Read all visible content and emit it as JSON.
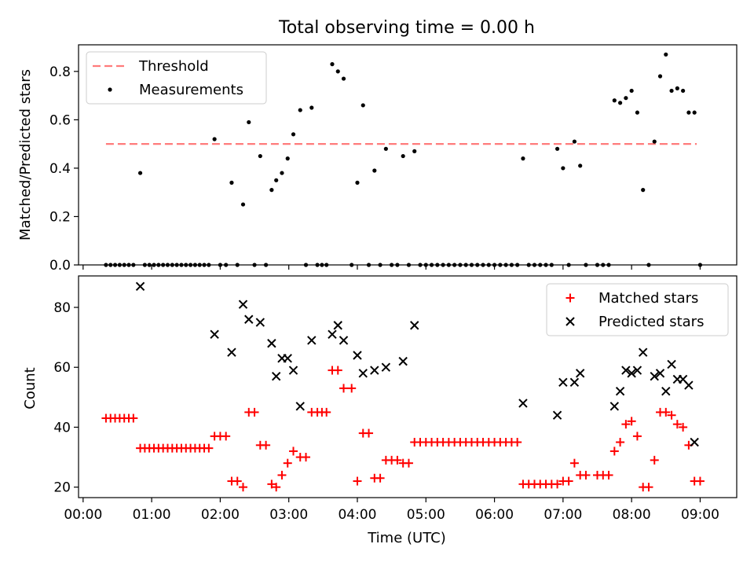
{
  "title": "Total observing time = 0.00 h",
  "chart_data": [
    {
      "type": "scatter",
      "ylabel": "Matched/Predicted stars",
      "ylim": [
        0,
        0.91
      ],
      "yticks": [
        "0.0",
        "0.2",
        "0.4",
        "0.6",
        "0.8"
      ],
      "legend_position": "top-left",
      "threshold": {
        "name": "Threshold",
        "value": 0.5,
        "x_start": "00:20",
        "x_end": "08:57",
        "color": "#ff7b7b"
      },
      "series": [
        {
          "name": "Measurements",
          "color": "#000000",
          "points": [
            [
              "00:20",
              0
            ],
            [
              "00:24",
              0
            ],
            [
              "00:28",
              0
            ],
            [
              "00:32",
              0
            ],
            [
              "00:36",
              0
            ],
            [
              "00:40",
              0
            ],
            [
              "00:44",
              0
            ],
            [
              "00:50",
              0.38
            ],
            [
              "00:54",
              0
            ],
            [
              "00:58",
              0
            ],
            [
              "01:02",
              0
            ],
            [
              "01:06",
              0
            ],
            [
              "01:10",
              0
            ],
            [
              "01:14",
              0
            ],
            [
              "01:18",
              0
            ],
            [
              "01:22",
              0
            ],
            [
              "01:26",
              0
            ],
            [
              "01:30",
              0
            ],
            [
              "01:34",
              0
            ],
            [
              "01:38",
              0
            ],
            [
              "01:42",
              0
            ],
            [
              "01:46",
              0
            ],
            [
              "01:50",
              0
            ],
            [
              "01:55",
              0.52
            ],
            [
              "02:00",
              0
            ],
            [
              "02:05",
              0
            ],
            [
              "02:10",
              0.34
            ],
            [
              "02:15",
              0
            ],
            [
              "02:20",
              0.25
            ],
            [
              "02:25",
              0.59
            ],
            [
              "02:30",
              0
            ],
            [
              "02:35",
              0.45
            ],
            [
              "02:40",
              0
            ],
            [
              "02:45",
              0.31
            ],
            [
              "02:49",
              0.35
            ],
            [
              "02:54",
              0.38
            ],
            [
              "02:59",
              0.44
            ],
            [
              "03:04",
              0.54
            ],
            [
              "03:10",
              0.64
            ],
            [
              "03:15",
              0
            ],
            [
              "03:20",
              0.65
            ],
            [
              "03:25",
              0
            ],
            [
              "03:29",
              0
            ],
            [
              "03:33",
              0
            ],
            [
              "03:38",
              0.83
            ],
            [
              "03:43",
              0.8
            ],
            [
              "03:48",
              0.77
            ],
            [
              "03:55",
              0
            ],
            [
              "04:00",
              0.34
            ],
            [
              "04:05",
              0.66
            ],
            [
              "04:10",
              0
            ],
            [
              "04:15",
              0.39
            ],
            [
              "04:20",
              0
            ],
            [
              "04:25",
              0.48
            ],
            [
              "04:30",
              0
            ],
            [
              "04:35",
              0
            ],
            [
              "04:40",
              0.45
            ],
            [
              "04:45",
              0
            ],
            [
              "04:50",
              0.47
            ],
            [
              "04:55",
              0
            ],
            [
              "05:00",
              0
            ],
            [
              "05:05",
              0
            ],
            [
              "05:10",
              0
            ],
            [
              "05:15",
              0
            ],
            [
              "05:20",
              0
            ],
            [
              "05:25",
              0
            ],
            [
              "05:30",
              0
            ],
            [
              "05:35",
              0
            ],
            [
              "05:40",
              0
            ],
            [
              "05:45",
              0
            ],
            [
              "05:50",
              0
            ],
            [
              "05:55",
              0
            ],
            [
              "06:00",
              0
            ],
            [
              "06:05",
              0
            ],
            [
              "06:10",
              0
            ],
            [
              "06:15",
              0
            ],
            [
              "06:20",
              0
            ],
            [
              "06:25",
              0.44
            ],
            [
              "06:30",
              0
            ],
            [
              "06:35",
              0
            ],
            [
              "06:40",
              0
            ],
            [
              "06:45",
              0
            ],
            [
              "06:50",
              0
            ],
            [
              "06:55",
              0.48
            ],
            [
              "07:00",
              0.4
            ],
            [
              "07:05",
              0
            ],
            [
              "07:10",
              0.51
            ],
            [
              "07:15",
              0.41
            ],
            [
              "07:20",
              0
            ],
            [
              "07:30",
              0
            ],
            [
              "07:35",
              0
            ],
            [
              "07:40",
              0
            ],
            [
              "07:45",
              0.68
            ],
            [
              "07:50",
              0.67
            ],
            [
              "07:55",
              0.69
            ],
            [
              "08:00",
              0.72
            ],
            [
              "08:05",
              0.63
            ],
            [
              "08:10",
              0.31
            ],
            [
              "08:15",
              0
            ],
            [
              "08:20",
              0.51
            ],
            [
              "08:25",
              0.78
            ],
            [
              "08:30",
              0.87
            ],
            [
              "08:35",
              0.72
            ],
            [
              "08:40",
              0.73
            ],
            [
              "08:45",
              0.72
            ],
            [
              "08:50",
              0.63
            ],
            [
              "08:55",
              0.63
            ],
            [
              "09:00",
              0
            ]
          ]
        }
      ]
    },
    {
      "type": "scatter",
      "xlabel": "Time (UTC)",
      "ylabel": "Count",
      "ylim": [
        16.5,
        90.5
      ],
      "yticks": [
        "20",
        "40",
        "60",
        "80"
      ],
      "xlim": [
        "23:56",
        "09:32"
      ],
      "xticks": [
        "00:00",
        "01:00",
        "02:00",
        "03:00",
        "04:00",
        "05:00",
        "06:00",
        "07:00",
        "08:00",
        "09:00"
      ],
      "legend_position": "top-right",
      "series": [
        {
          "name": "Matched stars",
          "marker": "+",
          "color": "#ff0000",
          "points": [
            [
              "00:20",
              43
            ],
            [
              "00:24",
              43
            ],
            [
              "00:28",
              43
            ],
            [
              "00:32",
              43
            ],
            [
              "00:36",
              43
            ],
            [
              "00:40",
              43
            ],
            [
              "00:44",
              43
            ],
            [
              "00:50",
              33
            ],
            [
              "00:54",
              33
            ],
            [
              "00:58",
              33
            ],
            [
              "01:02",
              33
            ],
            [
              "01:06",
              33
            ],
            [
              "01:10",
              33
            ],
            [
              "01:14",
              33
            ],
            [
              "01:18",
              33
            ],
            [
              "01:22",
              33
            ],
            [
              "01:26",
              33
            ],
            [
              "01:30",
              33
            ],
            [
              "01:34",
              33
            ],
            [
              "01:38",
              33
            ],
            [
              "01:42",
              33
            ],
            [
              "01:46",
              33
            ],
            [
              "01:50",
              33
            ],
            [
              "01:55",
              37
            ],
            [
              "02:00",
              37
            ],
            [
              "02:05",
              37
            ],
            [
              "02:10",
              22
            ],
            [
              "02:15",
              22
            ],
            [
              "02:20",
              20
            ],
            [
              "02:25",
              45
            ],
            [
              "02:30",
              45
            ],
            [
              "02:35",
              34
            ],
            [
              "02:40",
              34
            ],
            [
              "02:45",
              21
            ],
            [
              "02:49",
              20
            ],
            [
              "02:54",
              24
            ],
            [
              "02:59",
              28
            ],
            [
              "03:04",
              32
            ],
            [
              "03:10",
              30
            ],
            [
              "03:15",
              30
            ],
            [
              "03:20",
              45
            ],
            [
              "03:25",
              45
            ],
            [
              "03:29",
              45
            ],
            [
              "03:33",
              45
            ],
            [
              "03:38",
              59
            ],
            [
              "03:43",
              59
            ],
            [
              "03:48",
              53
            ],
            [
              "03:55",
              53
            ],
            [
              "04:00",
              22
            ],
            [
              "04:05",
              38
            ],
            [
              "04:10",
              38
            ],
            [
              "04:15",
              23
            ],
            [
              "04:20",
              23
            ],
            [
              "04:25",
              29
            ],
            [
              "04:30",
              29
            ],
            [
              "04:35",
              29
            ],
            [
              "04:40",
              28
            ],
            [
              "04:45",
              28
            ],
            [
              "04:50",
              35
            ],
            [
              "04:55",
              35
            ],
            [
              "05:00",
              35
            ],
            [
              "05:05",
              35
            ],
            [
              "05:10",
              35
            ],
            [
              "05:15",
              35
            ],
            [
              "05:20",
              35
            ],
            [
              "05:25",
              35
            ],
            [
              "05:30",
              35
            ],
            [
              "05:35",
              35
            ],
            [
              "05:40",
              35
            ],
            [
              "05:45",
              35
            ],
            [
              "05:50",
              35
            ],
            [
              "05:55",
              35
            ],
            [
              "06:00",
              35
            ],
            [
              "06:05",
              35
            ],
            [
              "06:10",
              35
            ],
            [
              "06:15",
              35
            ],
            [
              "06:20",
              35
            ],
            [
              "06:25",
              21
            ],
            [
              "06:30",
              21
            ],
            [
              "06:35",
              21
            ],
            [
              "06:40",
              21
            ],
            [
              "06:45",
              21
            ],
            [
              "06:50",
              21
            ],
            [
              "06:55",
              21
            ],
            [
              "07:00",
              22
            ],
            [
              "07:05",
              22
            ],
            [
              "07:10",
              28
            ],
            [
              "07:15",
              24
            ],
            [
              "07:20",
              24
            ],
            [
              "07:30",
              24
            ],
            [
              "07:35",
              24
            ],
            [
              "07:40",
              24
            ],
            [
              "07:45",
              32
            ],
            [
              "07:50",
              35
            ],
            [
              "07:55",
              41
            ],
            [
              "08:00",
              42
            ],
            [
              "08:05",
              37
            ],
            [
              "08:10",
              20
            ],
            [
              "08:15",
              20
            ],
            [
              "08:20",
              29
            ],
            [
              "08:25",
              45
            ],
            [
              "08:30",
              45
            ],
            [
              "08:35",
              44
            ],
            [
              "08:40",
              41
            ],
            [
              "08:45",
              40
            ],
            [
              "08:50",
              34
            ],
            [
              "08:55",
              22
            ],
            [
              "09:00",
              22
            ]
          ]
        },
        {
          "name": "Predicted stars",
          "marker": "x",
          "color": "#000000",
          "points": [
            [
              "00:50",
              87
            ],
            [
              "01:55",
              71
            ],
            [
              "02:10",
              65
            ],
            [
              "02:20",
              81
            ],
            [
              "02:25",
              76
            ],
            [
              "02:35",
              75
            ],
            [
              "02:45",
              68
            ],
            [
              "02:49",
              57
            ],
            [
              "02:54",
              63
            ],
            [
              "02:59",
              63
            ],
            [
              "03:04",
              59
            ],
            [
              "03:10",
              47
            ],
            [
              "03:20",
              69
            ],
            [
              "03:38",
              71
            ],
            [
              "03:43",
              74
            ],
            [
              "03:48",
              69
            ],
            [
              "04:00",
              64
            ],
            [
              "04:05",
              58
            ],
            [
              "04:15",
              59
            ],
            [
              "04:25",
              60
            ],
            [
              "04:40",
              62
            ],
            [
              "04:50",
              74
            ],
            [
              "06:25",
              48
            ],
            [
              "06:55",
              44
            ],
            [
              "07:00",
              55
            ],
            [
              "07:10",
              55
            ],
            [
              "07:15",
              58
            ],
            [
              "07:45",
              47
            ],
            [
              "07:50",
              52
            ],
            [
              "07:55",
              59
            ],
            [
              "08:00",
              58
            ],
            [
              "08:05",
              59
            ],
            [
              "08:10",
              65
            ],
            [
              "08:20",
              57
            ],
            [
              "08:25",
              58
            ],
            [
              "08:30",
              52
            ],
            [
              "08:35",
              61
            ],
            [
              "08:40",
              56
            ],
            [
              "08:45",
              56
            ],
            [
              "08:50",
              54
            ],
            [
              "08:55",
              35
            ]
          ]
        }
      ]
    }
  ]
}
